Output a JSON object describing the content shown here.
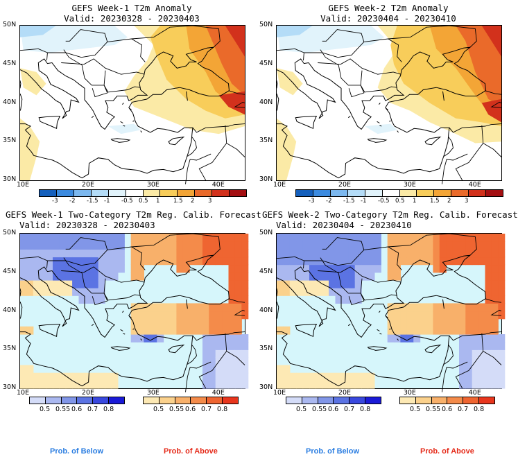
{
  "panels": [
    {
      "title1": "GEFS Week-1 T2m Anomaly",
      "title2": "Valid: 20230328 - 20230403"
    },
    {
      "title1": "GEFS Week-2 T2m Anomaly",
      "title2": "Valid: 20230404 - 20230410"
    },
    {
      "title1": "GEFS Week-1 Two-Category T2m Reg. Calib. Forecast",
      "title2": "Valid: 20230328 - 20230403"
    },
    {
      "title1": "GEFS Week-2 Two-Category T2m Reg. Calib. Forecast",
      "title2": "Valid: 20230404 - 20230410"
    }
  ],
  "lat_labels": [
    "50N",
    "45N",
    "40N",
    "35N",
    "30N"
  ],
  "lon_labels": [
    "10E",
    "20E",
    "30E",
    "40E"
  ],
  "anomaly_colorbar": {
    "labels": [
      "-3",
      "-2",
      "-1.5",
      "-1",
      "-0.5",
      "0.5",
      "1",
      "1.5",
      "2",
      "3"
    ],
    "colors": [
      "#1560bd",
      "#3c8be0",
      "#7cb8ef",
      "#b4dcf7",
      "#e1f3fb",
      "#ffffff",
      "#fbeaa6",
      "#f8cd5a",
      "#f3a536",
      "#ea6a2a",
      "#d2311c",
      "#a40f12"
    ]
  },
  "prob_below_colorbar": {
    "labels": [
      "0.5",
      "0.55",
      "0.6",
      "0.7",
      "0.8"
    ],
    "colors": [
      "#d4dcf8",
      "#aab8f0",
      "#8196e8",
      "#5b73e3",
      "#3948de",
      "#1a1ad7"
    ]
  },
  "prob_above_colorbar": {
    "labels": [
      "0.5",
      "0.55",
      "0.6",
      "0.7",
      "0.8"
    ],
    "colors": [
      "#fde9b4",
      "#fbd18c",
      "#f8b06a",
      "#f48b4a",
      "#ef6531",
      "#e8361d"
    ]
  },
  "footer": {
    "below": "Prob. of Below",
    "above": "Prob. of Above"
  },
  "colors": {
    "below_text": "#2a7de1",
    "above_text": "#e52b1a",
    "sea": "#d6f6fb"
  }
}
